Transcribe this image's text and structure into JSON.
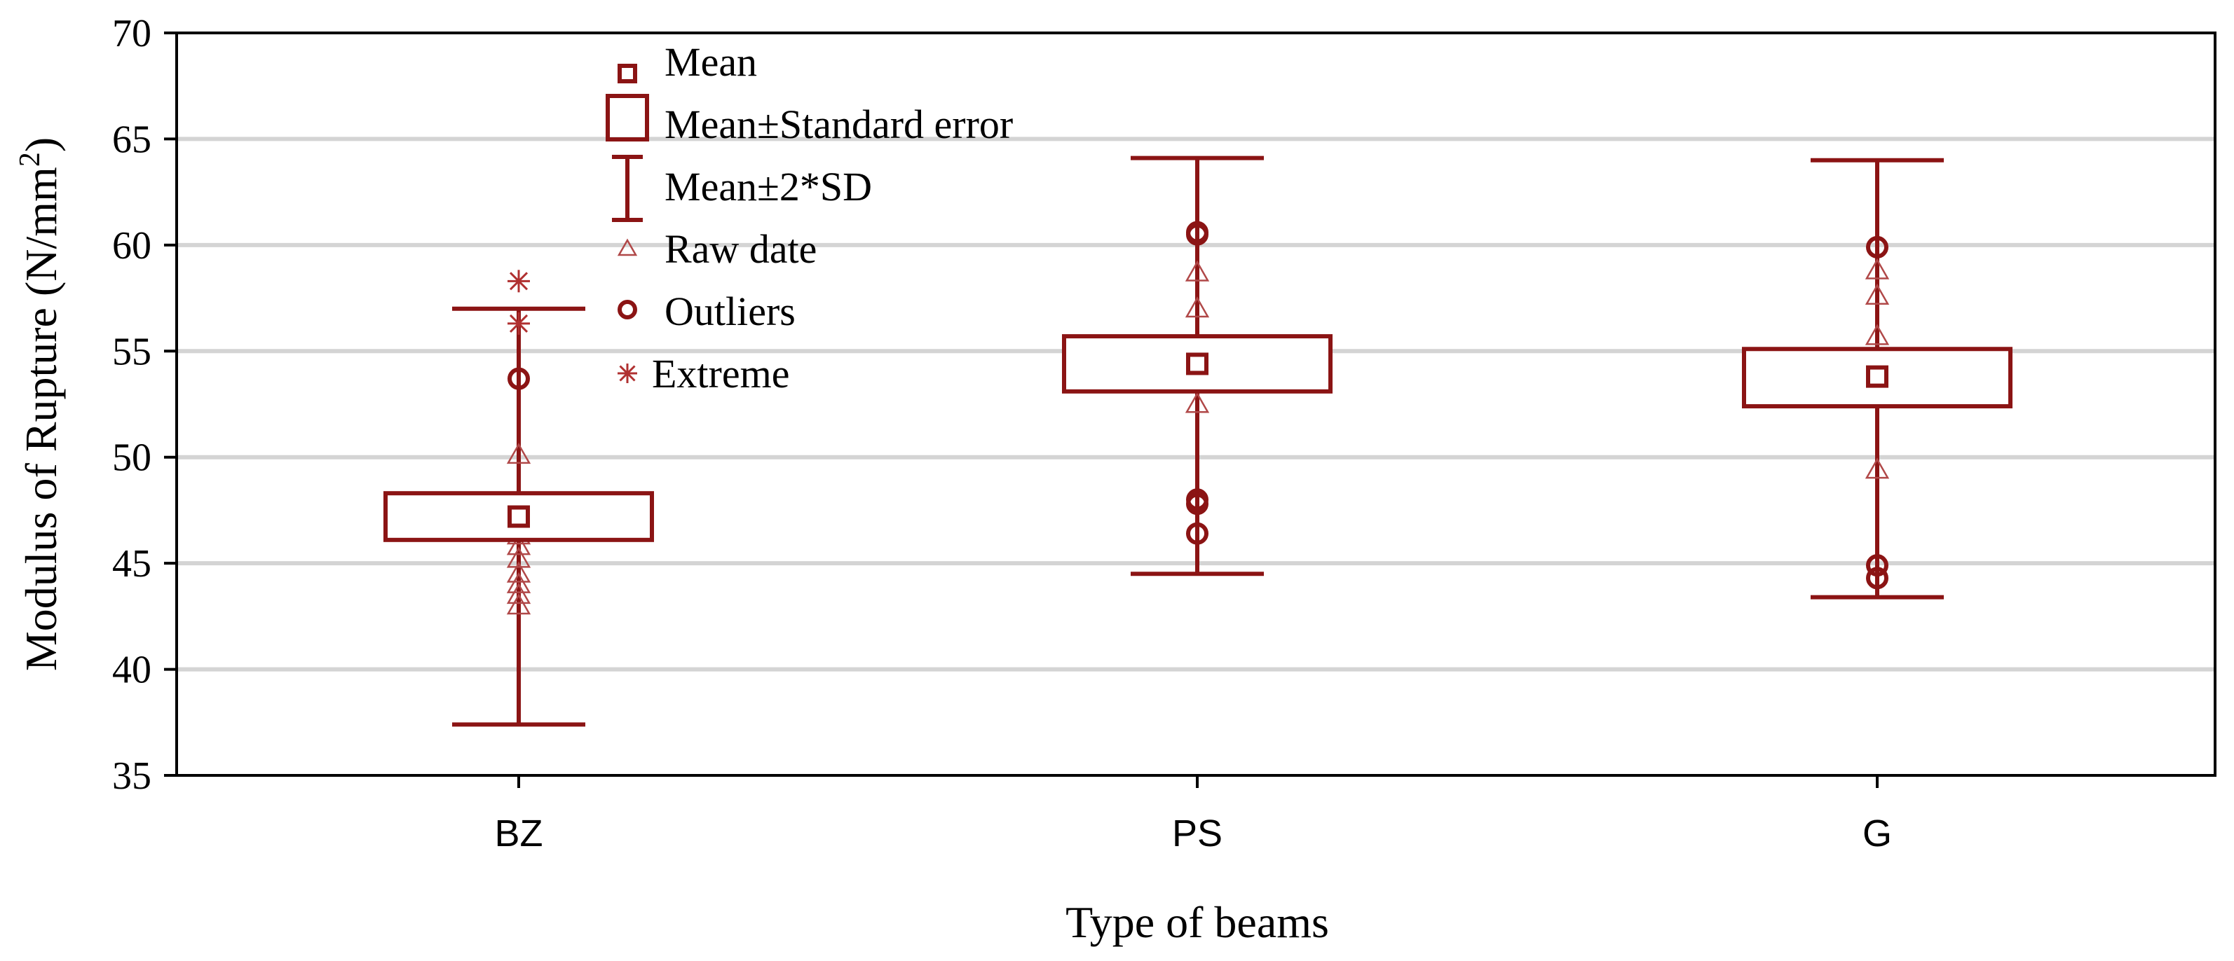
{
  "chart_data": {
    "type": "box",
    "title": "",
    "xlabel": "Type of beams",
    "ylabel": "Modulus of Rupture (N/mm",
    "ylabel_superscript": "2",
    "ylabel_close": ")",
    "ylim": [
      35,
      70
    ],
    "yticks": [
      35,
      40,
      45,
      50,
      55,
      60,
      65,
      70
    ],
    "grid": true,
    "legend_position": "top-left",
    "legend": [
      {
        "key": "mean",
        "label": "Mean"
      },
      {
        "key": "se",
        "label": "Mean±Standard error"
      },
      {
        "key": "sd",
        "label": "Mean±2*SD"
      },
      {
        "key": "raw",
        "label": "Raw date"
      },
      {
        "key": "outliers",
        "label": "Outliers"
      },
      {
        "key": "extreme",
        "label": "Extreme"
      }
    ],
    "categories": [
      "BZ",
      "PS",
      "G"
    ],
    "groups": [
      {
        "category": "BZ",
        "mean": 47.2,
        "se_low": 46.1,
        "se_high": 48.3,
        "sd2_low": 37.4,
        "sd2_high": 57.0,
        "raw": [
          43.0,
          43.5,
          44.0,
          44.5,
          45.2,
          45.8,
          46.3,
          46.8,
          47.5,
          50.1
        ],
        "outliers": [
          53.7
        ],
        "extremes": [
          56.3,
          58.3
        ]
      },
      {
        "category": "PS",
        "mean": 54.4,
        "se_low": 53.1,
        "se_high": 55.7,
        "sd2_low": 44.5,
        "sd2_high": 64.1,
        "raw": [
          52.5,
          54.6,
          55.2,
          57.0,
          58.7
        ],
        "outliers": [
          60.6,
          60.5,
          48.0,
          47.8,
          46.4
        ],
        "extremes": []
      },
      {
        "category": "G",
        "mean": 53.8,
        "se_low": 52.4,
        "se_high": 55.1,
        "sd2_low": 43.4,
        "sd2_high": 64.0,
        "raw": [
          49.4,
          53.0,
          54.1,
          55.7,
          57.6,
          58.8
        ],
        "outliers": [
          59.9,
          44.9,
          44.3
        ],
        "extremes": []
      }
    ],
    "colors": {
      "series": "#8b1414",
      "grid": "#d4d4d4",
      "axis": "#000000"
    }
  }
}
